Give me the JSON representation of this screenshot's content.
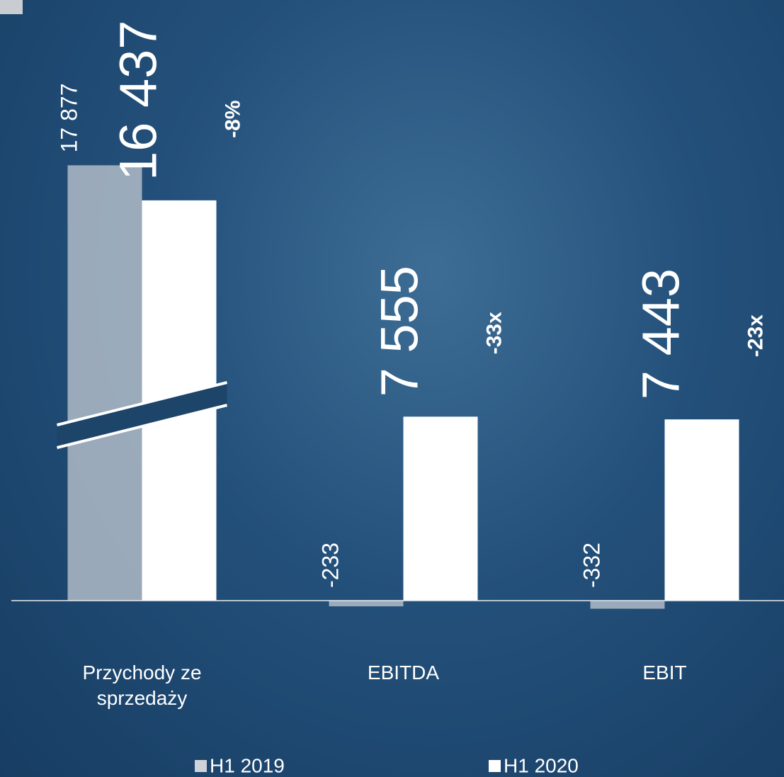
{
  "chart_data": {
    "type": "bar",
    "categories": [
      "Przychody ze sprzedaży",
      "EBITDA",
      "EBIT"
    ],
    "series": [
      {
        "name": "H1 2019",
        "color": "#cfd3d9",
        "values": [
          17877,
          -233,
          -332
        ],
        "value_labels": [
          "17 877",
          "-233",
          "-332"
        ]
      },
      {
        "name": "H1 2020",
        "color": "#ffffff",
        "values": [
          16437,
          7555,
          7443
        ],
        "value_labels": [
          "16 437",
          "7 555",
          "7 443"
        ]
      }
    ],
    "annotations": [
      "-8%",
      "-33x",
      "-23x"
    ],
    "ylim": [
      -1500,
      22000
    ],
    "axis_break": true
  }
}
